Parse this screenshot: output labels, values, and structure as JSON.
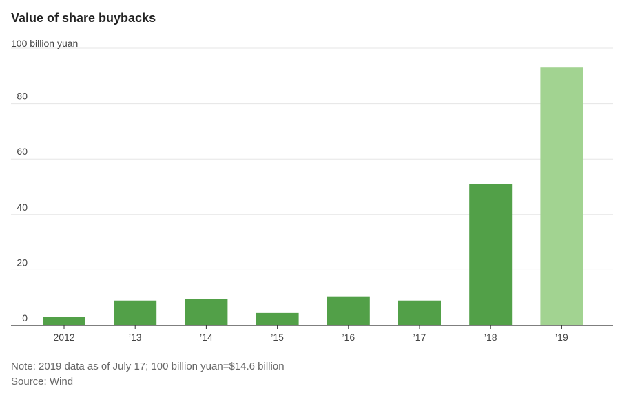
{
  "chart_data": {
    "type": "bar",
    "title": "Value of share buybacks",
    "unit_label": "100 billion yuan",
    "categories": [
      "2012",
      "’13",
      "’14",
      "’15",
      "’16",
      "’17",
      "’18",
      "’19"
    ],
    "values": [
      3,
      9,
      9.5,
      4.5,
      10.5,
      9,
      51,
      93
    ],
    "ylim": [
      0,
      100
    ],
    "yticks": [
      0,
      20,
      40,
      60,
      80
    ],
    "grid": true,
    "colors": {
      "bar": "#52a048",
      "highlight": "#a2d391",
      "grid": "#e5e5e5",
      "axis": "#333333"
    },
    "highlight_index": 7
  },
  "footer": {
    "note": "Note: 2019 data as of July 17; 100 billion yuan=$14.6 billion",
    "source": "Source: Wind"
  }
}
